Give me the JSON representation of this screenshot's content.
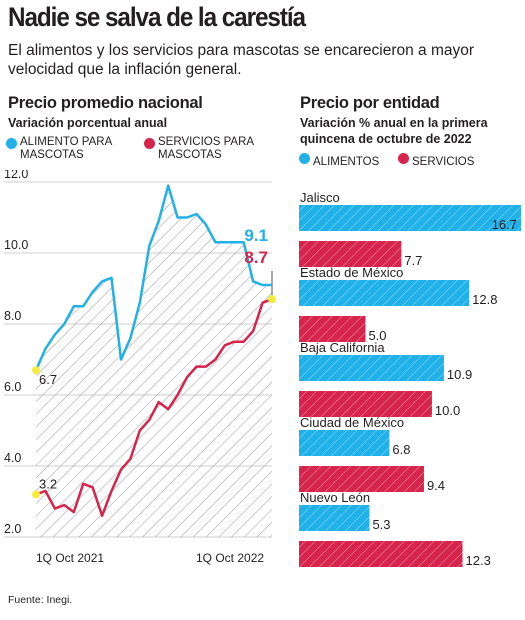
{
  "header": {
    "title": "Nadie se salva de la carestía",
    "subtitle": "El alimentos y los servicios para mascotas se encarecieron a mayor velocidad que la inflación general."
  },
  "colors": {
    "alimento": "#1fb1e8",
    "servicios": "#d6244c",
    "yellow": "#f6ec3c"
  },
  "chart_data": [
    {
      "type": "line",
      "title": "Precio promedio nacional",
      "subtitle": "Variación porcentual anual",
      "legend": [
        "ALIMENTO PARA MASCOTAS",
        "SERVICIOS PARA MASCOTAS"
      ],
      "legend_placement": "top",
      "ylim": [
        2.0,
        12.0
      ],
      "yticks": [
        "12.0",
        "10.0",
        "8.0",
        "6.0",
        "4.0",
        "2.0"
      ],
      "xtick_labels": [
        "1Q Oct 2021",
        "1Q Oct 2022"
      ],
      "start_label": {
        "alimento": "6.7",
        "servicios": "3.2"
      },
      "end_label": {
        "alimento": "9.1",
        "servicios": "8.7"
      },
      "series": [
        {
          "name": "ALIMENTO PARA MASCOTAS",
          "values": [
            6.7,
            7.3,
            7.7,
            8.0,
            8.5,
            8.5,
            8.9,
            9.2,
            9.3,
            7.0,
            7.6,
            8.6,
            10.2,
            10.9,
            11.9,
            11.0,
            11.0,
            11.1,
            10.8,
            10.3,
            10.3,
            10.3,
            10.3,
            9.2,
            9.1,
            9.1
          ]
        },
        {
          "name": "SERVICIOS PARA MASCOTAS",
          "values": [
            3.2,
            3.3,
            2.8,
            2.9,
            2.7,
            3.5,
            3.4,
            2.6,
            3.3,
            3.9,
            4.2,
            5.0,
            5.3,
            5.8,
            5.6,
            6.0,
            6.5,
            6.8,
            6.8,
            7.0,
            7.4,
            7.5,
            7.5,
            7.8,
            8.6,
            8.7
          ]
        }
      ]
    },
    {
      "type": "bar",
      "orientation": "horizontal",
      "title": "Precio por entidad",
      "subtitle": "Variación % anual en la primera quincena de octubre de 2022",
      "legend": [
        "ALIMENTOS",
        "SERVICIOS"
      ],
      "categories": [
        "Jalisco",
        "Estado de México",
        "Baja California",
        "Ciudad de México",
        "Nuevo León"
      ],
      "series": [
        {
          "name": "ALIMENTOS",
          "values": [
            16.7,
            12.8,
            10.9,
            6.8,
            5.3
          ],
          "labels": [
            "16.7",
            "12.8",
            "10.9",
            "6.8",
            "5.3"
          ]
        },
        {
          "name": "SERVICIOS",
          "values": [
            7.7,
            5.0,
            10.0,
            9.4,
            12.3
          ],
          "labels": [
            "7.7",
            "5.0",
            "10.0",
            "9.4",
            "12.3"
          ]
        }
      ],
      "xlim": [
        0,
        16.7
      ]
    }
  ],
  "footer": {
    "source": "Fuente: Inegi."
  }
}
